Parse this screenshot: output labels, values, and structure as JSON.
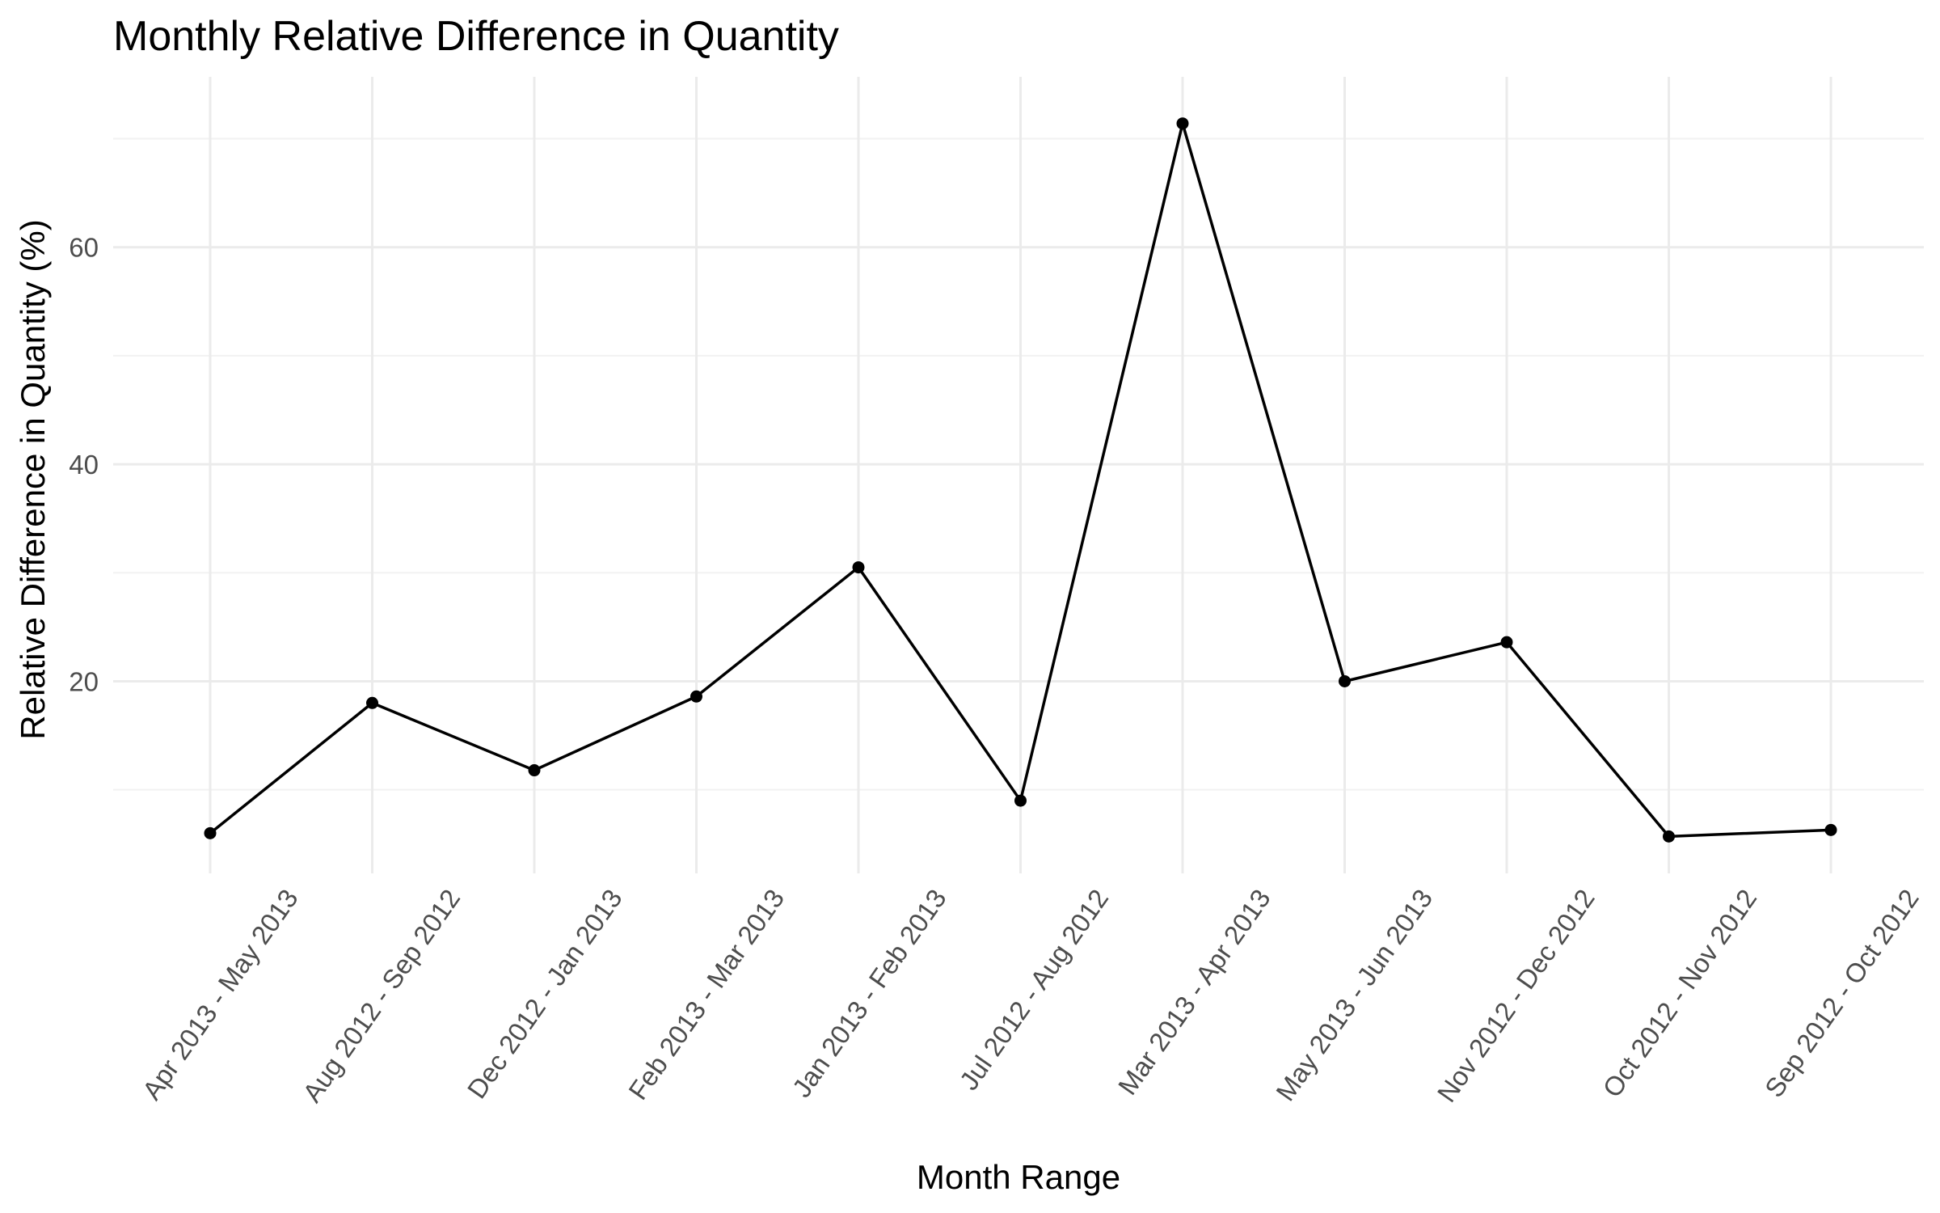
{
  "chart_data": {
    "type": "line",
    "title": "Monthly Relative Difference in Quantity",
    "xlabel": "Month Range",
    "ylabel": "Relative Difference in Quantity (%)",
    "categories": [
      "Apr 2013 - May 2013",
      "Aug 2012 - Sep 2012",
      "Dec 2012 - Jan 2013",
      "Feb 2013 - Mar 2013",
      "Jan 2013 - Feb 2013",
      "Jul 2012 - Aug 2012",
      "Mar 2013 - Apr 2013",
      "May 2013 - Jun 2013",
      "Nov 2012 - Dec 2012",
      "Oct 2012 - Nov 2012",
      "Sep 2012 - Oct 2012"
    ],
    "series": [
      {
        "values": [
          6.0,
          18.0,
          11.8,
          18.6,
          30.5,
          9.0,
          71.4,
          20.0,
          23.6,
          5.7,
          6.3
        ]
      }
    ],
    "y_ticks": [
      20,
      40,
      60
    ],
    "ylim": [
      2.3,
      75.7
    ],
    "grid": true,
    "legend": "none",
    "colors": {
      "line": "#000000",
      "point": "#000000",
      "grid_major": "#ebebeb",
      "grid_minor": "#f2f2f2",
      "tick_text": "#4d4d4d"
    }
  }
}
